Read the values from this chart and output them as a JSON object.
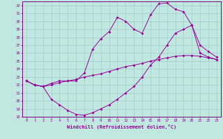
{
  "xlabel": "Windchill (Refroidissement éolien,°C)",
  "background_color": "#c0e8e0",
  "grid_color": "#a0cccc",
  "line_color": "#990099",
  "spine_color": "#7a007a",
  "xlim": [
    -0.5,
    23.5
  ],
  "ylim": [
    18,
    32.5
  ],
  "xticks": [
    0,
    1,
    2,
    3,
    4,
    5,
    6,
    7,
    8,
    9,
    10,
    11,
    12,
    13,
    14,
    15,
    16,
    17,
    18,
    19,
    20,
    21,
    22,
    23
  ],
  "yticks": [
    18,
    19,
    20,
    21,
    22,
    23,
    24,
    25,
    26,
    27,
    28,
    29,
    30,
    31,
    32
  ],
  "line1_x": [
    0,
    1,
    2,
    3,
    4,
    5,
    6,
    7,
    8,
    9,
    10,
    11,
    12,
    13,
    14,
    15,
    16,
    17,
    18,
    19,
    20,
    21,
    22,
    23
  ],
  "line1_y": [
    22.5,
    22.0,
    21.8,
    22.2,
    22.5,
    22.5,
    22.5,
    23.5,
    26.5,
    27.8,
    28.7,
    30.5,
    30.0,
    29.0,
    28.5,
    30.8,
    32.2,
    32.3,
    31.5,
    31.2,
    29.5,
    27.0,
    26.2,
    25.5
  ],
  "line2_x": [
    0,
    1,
    2,
    3,
    4,
    5,
    6,
    7,
    8,
    9,
    10,
    11,
    12,
    13,
    14,
    15,
    16,
    17,
    18,
    19,
    20,
    21,
    22,
    23
  ],
  "line2_y": [
    22.5,
    22.0,
    21.8,
    22.0,
    22.3,
    22.5,
    22.7,
    23.0,
    23.2,
    23.4,
    23.7,
    24.0,
    24.3,
    24.5,
    24.7,
    25.0,
    25.2,
    25.4,
    25.6,
    25.7,
    25.7,
    25.6,
    25.4,
    25.2
  ],
  "line3_x": [
    0,
    1,
    2,
    3,
    4,
    5,
    6,
    7,
    8,
    9,
    10,
    11,
    12,
    13,
    14,
    15,
    16,
    17,
    18,
    19,
    20,
    21,
    22,
    23
  ],
  "line3_y": [
    22.5,
    22.0,
    21.8,
    20.2,
    19.5,
    18.8,
    18.3,
    18.2,
    18.5,
    19.0,
    19.5,
    20.2,
    21.0,
    21.8,
    23.0,
    24.5,
    25.5,
    27.0,
    28.5,
    29.0,
    29.5,
    26.0,
    25.5,
    25.2
  ]
}
